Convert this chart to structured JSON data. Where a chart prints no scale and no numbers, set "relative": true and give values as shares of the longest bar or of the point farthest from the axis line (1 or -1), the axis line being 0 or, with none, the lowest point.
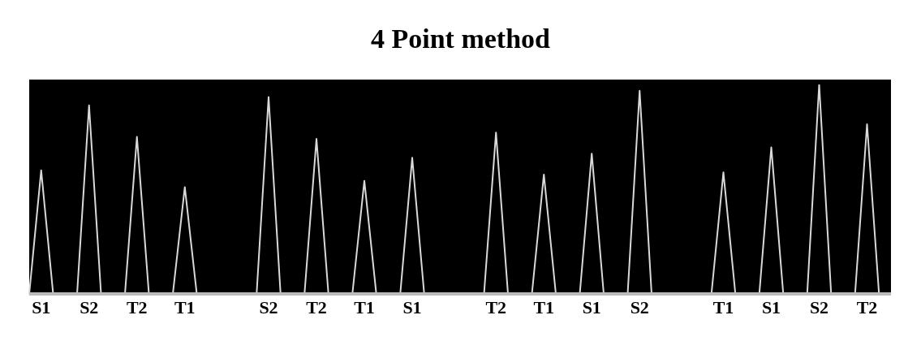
{
  "chart_data": {
    "type": "line",
    "title": "4 Point method",
    "relative": true,
    "marker": "none",
    "categories": [
      null,
      "S1",
      null,
      null,
      null,
      "S2",
      null,
      null,
      null,
      "T2",
      null,
      null,
      null,
      "T1",
      null,
      null,
      null,
      null,
      null,
      null,
      "S2",
      null,
      null,
      null,
      "T2",
      null,
      null,
      null,
      "T1",
      null,
      null,
      null,
      "S1",
      null,
      null,
      null,
      null,
      null,
      null,
      "T2",
      null,
      null,
      null,
      "T1",
      null,
      null,
      null,
      "S1",
      null,
      null,
      null,
      "S2",
      null,
      null,
      null,
      null,
      null,
      null,
      "T1",
      null,
      null,
      null,
      "S1",
      null,
      null,
      null,
      "S2",
      null,
      null,
      null,
      "T2",
      null,
      null
    ],
    "series": [
      {
        "color": "#d9d9d9",
        "values": [
          0,
          0.59,
          0,
          0,
          0,
          0.9,
          0,
          0,
          0,
          0.75,
          0,
          0,
          0,
          0.51,
          0,
          0,
          0,
          0,
          0,
          0,
          0.94,
          0,
          0,
          0,
          0.74,
          0,
          0,
          0,
          0.54,
          0,
          0,
          0,
          0.65,
          0,
          0,
          0,
          0,
          0,
          0,
          0.77,
          0,
          0,
          0,
          0.57,
          0,
          0,
          0,
          0.67,
          0,
          0,
          0,
          0.97,
          0,
          0,
          0,
          0,
          0,
          0,
          0.58,
          0,
          0,
          0,
          0.7,
          0,
          0,
          0,
          1,
          0,
          0,
          0,
          0.81,
          0,
          0
        ]
      }
    ]
  }
}
